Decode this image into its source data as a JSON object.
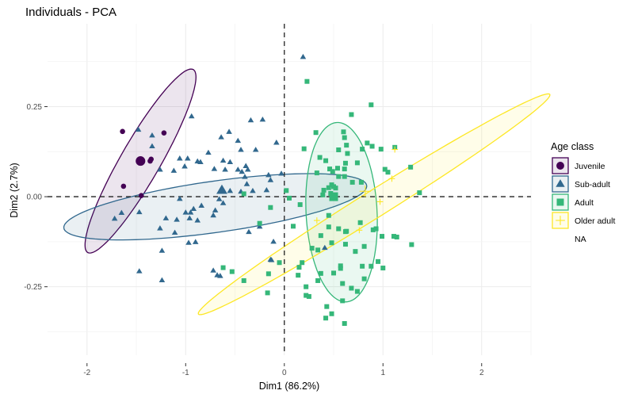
{
  "chart_data": {
    "type": "scatter",
    "title": "Individuals - PCA",
    "xlabel": "Dim1 (86.2%)",
    "ylabel": "Dim2 (2.7%)",
    "xlim": [
      -2.4,
      2.5
    ],
    "ylim": [
      -0.44,
      0.48
    ],
    "x_ticks": [
      -2,
      -1,
      0,
      1,
      2
    ],
    "x_tick_labels": [
      "-2",
      "-1",
      "0",
      "1",
      "2"
    ],
    "y_ticks": [
      -0.25,
      0,
      0.25
    ],
    "y_tick_labels": [
      "-0.25",
      "0.00",
      "0.25"
    ],
    "grid": true,
    "reference_lines": {
      "x": 0,
      "y": 0,
      "style": "dashed"
    },
    "legend": {
      "title": "Age class",
      "placement": "right",
      "entries": [
        {
          "label": "Juvenile",
          "shape": "circle",
          "color": "#440154"
        },
        {
          "label": "Sub-adult",
          "shape": "triangle",
          "color": "#31688E"
        },
        {
          "label": "Adult",
          "shape": "square",
          "color": "#35B779"
        },
        {
          "label": "Older adult",
          "shape": "plus",
          "color": "#FDE725"
        },
        {
          "label": "NA",
          "shape": "none",
          "color": ""
        }
      ]
    },
    "series": [
      {
        "name": "Juvenile",
        "shape": "circle",
        "color": "#440154",
        "centroid": [
          -1.458,
          0.099
        ],
        "ellipse": {
          "center": [
            -1.458,
            0.099
          ],
          "rx": 1.07,
          "ry": 0.2,
          "angle_deg": 60
        },
        "points": [
          [
            -1.64,
            0.181
          ],
          [
            -1.22,
            0.177
          ],
          [
            -1.36,
            0.099
          ],
          [
            -1.63,
            0.029
          ],
          [
            -1.45,
            0.003
          ],
          [
            -1.35,
            0.104
          ]
        ]
      },
      {
        "name": "Sub-adult",
        "shape": "triangle",
        "color": "#31688E",
        "centroid": [
          -0.633,
          0.018
        ],
        "ellipse": {
          "center": [
            -0.7,
            -0.028
          ],
          "rx": 1.55,
          "ry": 0.26,
          "angle_deg": 8
        },
        "points": [
          [
            0.19,
            0.388
          ],
          [
            -0.94,
            0.223
          ],
          [
            -0.22,
            0.214
          ],
          [
            -0.34,
            0.212
          ],
          [
            -0.56,
            0.18
          ],
          [
            -0.47,
            0.155
          ],
          [
            -1.48,
            0.186
          ],
          [
            -1.34,
            0.17
          ],
          [
            -1.34,
            0.14
          ],
          [
            -0.98,
            0.106
          ],
          [
            -1.06,
            0.106
          ],
          [
            -0.85,
            0.096
          ],
          [
            -1.01,
            0.084
          ],
          [
            -1.26,
            0.075
          ],
          [
            -1.12,
            0.072
          ],
          [
            -0.29,
            0.13
          ],
          [
            -0.44,
            0.13
          ],
          [
            -0.08,
            0.15
          ],
          [
            -0.64,
            0.165
          ],
          [
            -0.77,
            0.122
          ],
          [
            -0.88,
            0.098
          ],
          [
            -0.62,
            0.1
          ],
          [
            -0.55,
            0.096
          ],
          [
            -0.71,
            0.077
          ],
          [
            -0.6,
            0.075
          ],
          [
            -0.47,
            0.075
          ],
          [
            -0.43,
            0.069
          ],
          [
            -0.37,
            0.075
          ],
          [
            -0.4,
            0.055
          ],
          [
            -0.38,
            0.035
          ],
          [
            -0.39,
            0.085
          ],
          [
            -0.03,
            0.064
          ],
          [
            -0.16,
            0.06
          ],
          [
            -0.14,
            0.046
          ],
          [
            -0.18,
            0.018
          ],
          [
            -1.06,
            -0.006
          ],
          [
            -0.64,
            0.016
          ],
          [
            -0.55,
            0.016
          ],
          [
            -0.44,
            0.014
          ],
          [
            -0.32,
            0.016
          ],
          [
            -0.66,
            -0.007
          ],
          [
            -0.84,
            -0.025
          ],
          [
            -0.62,
            -0.018
          ],
          [
            -0.7,
            -0.038
          ],
          [
            -0.92,
            -0.034
          ],
          [
            -0.95,
            -0.044
          ],
          [
            -0.72,
            -0.052
          ],
          [
            -1.47,
            -0.043
          ],
          [
            -1.72,
            -0.061
          ],
          [
            -1.65,
            -0.045
          ],
          [
            -1.2,
            -0.06
          ],
          [
            -1.0,
            -0.044
          ],
          [
            -0.88,
            -0.066
          ],
          [
            -1.26,
            -0.088
          ],
          [
            -1.11,
            -0.1
          ],
          [
            -1.09,
            -0.064
          ],
          [
            -0.96,
            -0.06
          ],
          [
            -0.97,
            -0.128
          ],
          [
            -0.9,
            -0.126
          ],
          [
            -1.24,
            -0.15
          ],
          [
            -1.47,
            -0.207
          ],
          [
            -0.72,
            -0.205
          ],
          [
            -0.65,
            -0.22
          ],
          [
            -0.68,
            -0.218
          ],
          [
            -0.14,
            -0.175
          ],
          [
            -0.11,
            -0.125
          ],
          [
            -0.36,
            -0.098
          ],
          [
            -0.25,
            -0.083
          ],
          [
            -0.13,
            -0.176
          ],
          [
            0.41,
            -0.142
          ],
          [
            -1.24,
            -0.232
          ]
        ]
      },
      {
        "name": "Adult",
        "shape": "square",
        "color": "#35B779",
        "centroid": [
          0.5,
          0.0
        ],
        "ellipse": {
          "center": [
            0.58,
            -0.043
          ],
          "rx": 0.91,
          "ry": 0.36,
          "angle_deg": 93
        },
        "points": [
          [
            0.23,
            0.32
          ],
          [
            0.88,
            0.255
          ],
          [
            0.68,
            0.228
          ],
          [
            0.32,
            0.178
          ],
          [
            0.6,
            0.18
          ],
          [
            0.61,
            0.164
          ],
          [
            0.55,
            0.13
          ],
          [
            0.2,
            0.133
          ],
          [
            0.63,
            0.143
          ],
          [
            0.64,
            0.12
          ],
          [
            0.84,
            0.149
          ],
          [
            0.89,
            0.14
          ],
          [
            1.12,
            0.137
          ],
          [
            0.79,
            0.132
          ],
          [
            0.98,
            0.132
          ],
          [
            0.36,
            0.109
          ],
          [
            0.42,
            0.1
          ],
          [
            0.54,
            0.079
          ],
          [
            0.61,
            0.077
          ],
          [
            0.62,
            0.093
          ],
          [
            0.74,
            0.094
          ],
          [
            1.02,
            0.076
          ],
          [
            1.05,
            0.068
          ],
          [
            1.28,
            0.082
          ],
          [
            0.46,
            0.077
          ],
          [
            0.49,
            0.07
          ],
          [
            0.33,
            0.066
          ],
          [
            0.55,
            0.056
          ],
          [
            0.61,
            0.056
          ],
          [
            0.78,
            0.04
          ],
          [
            0.5,
            0.028
          ],
          [
            0.52,
            0.024
          ],
          [
            0.48,
            0.033
          ],
          [
            0.47,
            0.009
          ],
          [
            0.69,
            0.04
          ],
          [
            1.37,
            0.011
          ],
          [
            0.02,
            0.017
          ],
          [
            0.05,
            -0.004
          ],
          [
            -0.25,
            -0.074
          ],
          [
            0.09,
            -0.082
          ],
          [
            0.16,
            -0.022
          ],
          [
            0.45,
            -0.052
          ],
          [
            0.63,
            -0.096
          ],
          [
            0.55,
            -0.089
          ],
          [
            0.77,
            -0.072
          ],
          [
            0.9,
            -0.092
          ],
          [
            0.93,
            -0.089
          ],
          [
            1.14,
            -0.112
          ],
          [
            1.11,
            -0.11
          ],
          [
            0.99,
            -0.11
          ],
          [
            0.37,
            -0.108
          ],
          [
            0.45,
            -0.084
          ],
          [
            0.62,
            -0.097
          ],
          [
            0.95,
            -0.18
          ],
          [
            0.88,
            -0.193
          ],
          [
            0.57,
            -0.192
          ],
          [
            1.0,
            -0.198
          ],
          [
            0.18,
            -0.183
          ],
          [
            0.28,
            -0.143
          ],
          [
            0.34,
            -0.148
          ],
          [
            0.48,
            -0.128
          ],
          [
            0.62,
            -0.132
          ],
          [
            0.81,
            -0.138
          ],
          [
            0.72,
            -0.152
          ],
          [
            1.29,
            -0.133
          ],
          [
            0.5,
            -0.212
          ],
          [
            0.57,
            -0.199
          ],
          [
            0.59,
            -0.241
          ],
          [
            0.79,
            -0.193
          ],
          [
            0.25,
            -0.277
          ],
          [
            0.68,
            -0.254
          ],
          [
            0.59,
            -0.289
          ],
          [
            0.74,
            -0.263
          ],
          [
            -0.41,
            -0.233
          ],
          [
            -0.53,
            -0.208
          ],
          [
            -0.17,
            -0.267
          ],
          [
            -0.62,
            -0.197
          ],
          [
            0.43,
            -0.305
          ],
          [
            0.34,
            -0.233
          ],
          [
            0.22,
            -0.25
          ],
          [
            0.14,
            -0.218
          ],
          [
            0.37,
            -0.213
          ],
          [
            0.81,
            -0.228
          ],
          [
            0.61,
            -0.352
          ],
          [
            0.48,
            -0.325
          ],
          [
            0.42,
            -0.337
          ],
          [
            0.22,
            -0.274
          ],
          [
            0.15,
            -0.196
          ],
          [
            -0.16,
            -0.214
          ],
          [
            -0.05,
            -0.183
          ],
          [
            -0.41,
            0.008
          ],
          [
            -0.14,
            -0.03
          ],
          [
            0.39,
            0.005
          ],
          [
            0.4,
            0.018
          ],
          [
            0.45,
            0.025
          ]
        ]
      },
      {
        "name": "Older adult",
        "shape": "plus",
        "color": "#FDE725",
        "centroid": [
          0.82,
          0.015
        ],
        "ellipse": {
          "center": [
            0.91,
            -0.021
          ],
          "rx": 2.1,
          "ry": 0.135,
          "angle_deg": 32
        },
        "points": [
          [
            1.12,
            0.131
          ],
          [
            1.09,
            0.05
          ],
          [
            0.33,
            -0.066
          ],
          [
            0.76,
            -0.093
          ],
          [
            0.97,
            -0.014
          ]
        ]
      }
    ]
  }
}
